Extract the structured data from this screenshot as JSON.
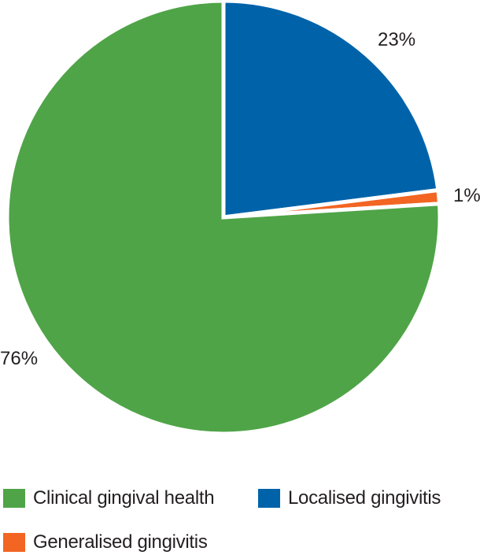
{
  "chart_data": {
    "type": "pie",
    "slices": [
      {
        "label": "Localised gingivitis",
        "value": 23,
        "display": "23%",
        "color": "#0063a9"
      },
      {
        "label": "Generalised gingivitis",
        "value": 1,
        "display": "1%",
        "color": "#f26522"
      },
      {
        "label": "Clinical gingival health",
        "value": 76,
        "display": "76%",
        "color": "#4fa447"
      }
    ],
    "legend": [
      {
        "label": "Clinical gingival health",
        "color": "#4fa447"
      },
      {
        "label": "Localised gingivitis",
        "color": "#0063a9"
      },
      {
        "label": "Generalised gingivitis",
        "color": "#f26522"
      }
    ],
    "start": "top",
    "direction": "clockwise",
    "legend_position": "bottom"
  }
}
